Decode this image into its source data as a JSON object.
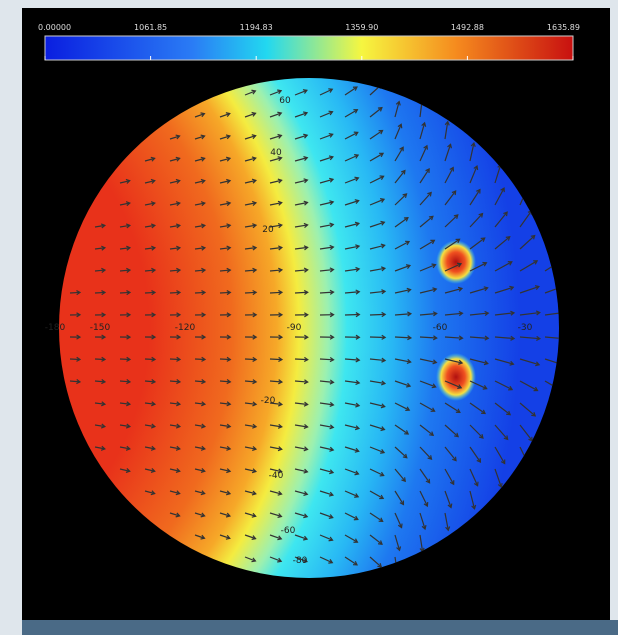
{
  "colorbar": {
    "labels": [
      "0.00000",
      "1061.85",
      "1194.83",
      "1359.90",
      "1492.88",
      "1635.89"
    ]
  },
  "map": {
    "lat_labels": [
      "60",
      "40",
      "20",
      "-20",
      "-40",
      "-60",
      "-80"
    ],
    "lon_labels": [
      "-180",
      "-150",
      "-120",
      "-90",
      "-60",
      "-30"
    ]
  }
}
